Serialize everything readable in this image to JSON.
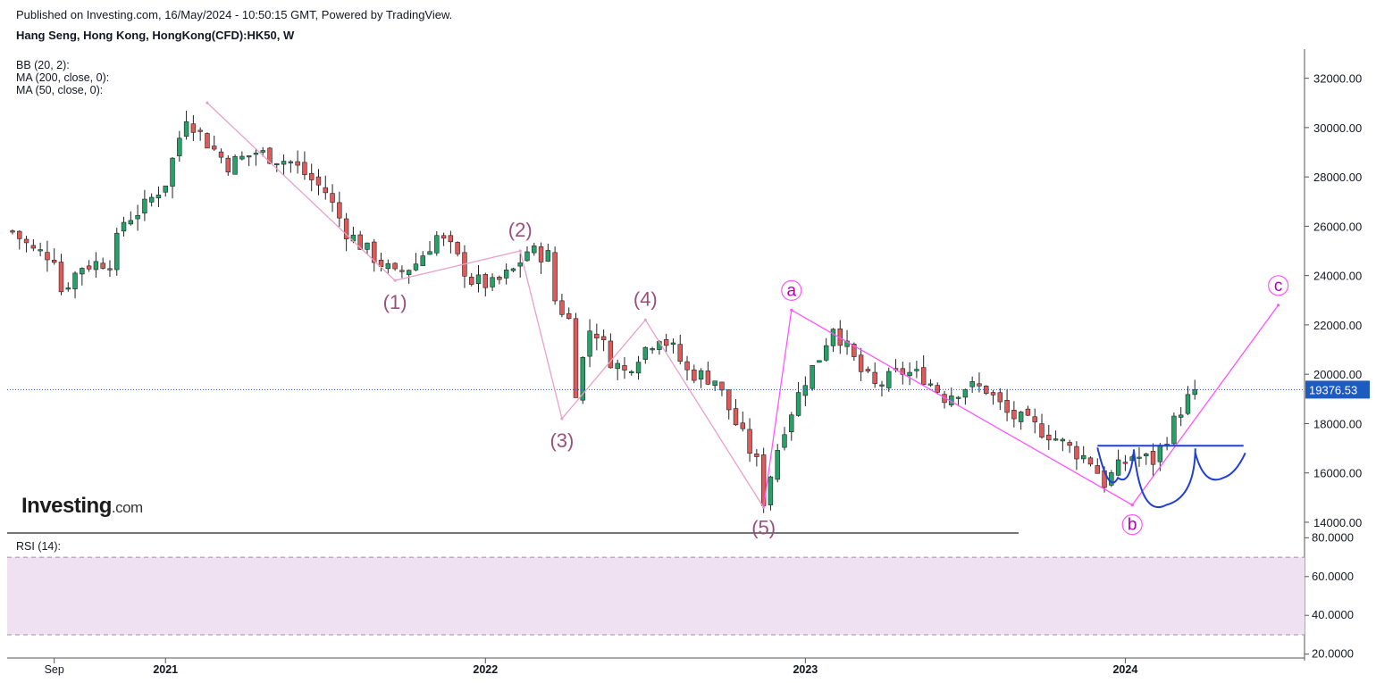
{
  "header": {
    "published": "Published on Investing.com, 16/May/2024 - 10:50:15 GMT, Powered by TradingView.",
    "title": "Hang Seng, Hong Kong, HongKong(CFD):HK50, W"
  },
  "indicators": [
    "BB (20, 2):",
    "MA (200, close, 0):",
    "MA (50, close, 0):"
  ],
  "rsi_label": "RSI (14):",
  "logo": {
    "word": "Investing",
    "suffix": ".com"
  },
  "colors": {
    "up": "#26a269",
    "down": "#e05a5a",
    "wave": "#e8a0c8",
    "abc": "#ff55ff",
    "pattern": "#1f3fd6",
    "last_price": "#1e5bbf",
    "rsi_band": "#efe1f2"
  },
  "chart_data": {
    "type": "candlestick",
    "interval": "W",
    "y_axis": {
      "ylim": [
        13600,
        33000
      ],
      "ticks": [
        "32000.00",
        "30000.00",
        "28000.00",
        "26000.00",
        "24000.00",
        "22000.00",
        "20000.00",
        "18000.00",
        "16000.00",
        "14000.00"
      ]
    },
    "x_axis": {
      "labels": [
        "Sep",
        "2021",
        "2022",
        "2023",
        "2024"
      ],
      "bold": [
        false,
        true,
        true,
        true,
        true
      ],
      "x_at": [
        6,
        22,
        68,
        114,
        160
      ]
    },
    "last_price": {
      "value": 19376.53,
      "label": "19376.53"
    },
    "close_path": [
      [
        0,
        25800
      ],
      [
        3,
        25000
      ],
      [
        6,
        24800
      ],
      [
        7,
        23400
      ],
      [
        10,
        24400
      ],
      [
        14,
        24600
      ],
      [
        16,
        26200
      ],
      [
        19,
        26800
      ],
      [
        22,
        27800
      ],
      [
        25,
        30500
      ],
      [
        28,
        29400
      ],
      [
        31,
        28500
      ],
      [
        35,
        29000
      ],
      [
        40,
        28600
      ],
      [
        45,
        27400
      ],
      [
        48,
        25800
      ],
      [
        51,
        25000
      ],
      [
        55,
        24000
      ],
      [
        58,
        24500
      ],
      [
        61,
        25600
      ],
      [
        63,
        25100
      ],
      [
        66,
        23800
      ],
      [
        69,
        23600
      ],
      [
        72,
        24200
      ],
      [
        74,
        25000
      ],
      [
        77,
        24800
      ],
      [
        78,
        23000
      ],
      [
        80,
        22200
      ],
      [
        81,
        19400
      ],
      [
        83,
        21800
      ],
      [
        84,
        21700
      ],
      [
        86,
        20600
      ],
      [
        88,
        20100
      ],
      [
        90,
        20800
      ],
      [
        93,
        21600
      ],
      [
        95,
        21000
      ],
      [
        97,
        20100
      ],
      [
        101,
        19800
      ],
      [
        104,
        18000
      ],
      [
        107,
        16400
      ],
      [
        108,
        14900
      ],
      [
        110,
        17000
      ],
      [
        111,
        17900
      ],
      [
        114,
        19800
      ],
      [
        116,
        20700
      ],
      [
        118,
        22000
      ],
      [
        119,
        21500
      ],
      [
        122,
        20100
      ],
      [
        124,
        19500
      ],
      [
        128,
        20100
      ],
      [
        131,
        19900
      ],
      [
        134,
        19100
      ],
      [
        137,
        19500
      ],
      [
        140,
        19400
      ],
      [
        143,
        18400
      ],
      [
        146,
        18000
      ],
      [
        149,
        17600
      ],
      [
        152,
        17000
      ],
      [
        155,
        16500
      ],
      [
        157,
        15600
      ],
      [
        159,
        16200
      ],
      [
        161,
        16700
      ],
      [
        164,
        16500
      ],
      [
        166,
        17500
      ],
      [
        168,
        18600
      ],
      [
        170,
        19376
      ]
    ],
    "waves": {
      "labels": [
        "(1)",
        "(2)",
        "(3)",
        "(4)",
        "(5)"
      ],
      "points": [
        [
          28,
          31000
        ],
        [
          55,
          23800
        ],
        [
          73,
          25000
        ],
        [
          79,
          18200
        ],
        [
          91,
          22200
        ],
        [
          108,
          14600
        ]
      ]
    },
    "abc": {
      "labels": [
        "a",
        "b",
        "c"
      ],
      "points": [
        [
          112,
          22600
        ],
        [
          161,
          14700
        ],
        [
          182,
          22800
        ]
      ],
      "from": [
        108,
        14600
      ]
    },
    "pattern": {
      "neckline": {
        "x": [
          156,
          177
        ],
        "y": 17100
      },
      "left_shoulder_low": 15800,
      "head_low": 14700,
      "right_shoulder_low": 15800
    },
    "rsi": {
      "ylim": [
        18,
        82
      ],
      "ticks": [
        "80.0000",
        "60.0000",
        "40.0000",
        "20.0000"
      ],
      "band": [
        30,
        70
      ]
    }
  }
}
